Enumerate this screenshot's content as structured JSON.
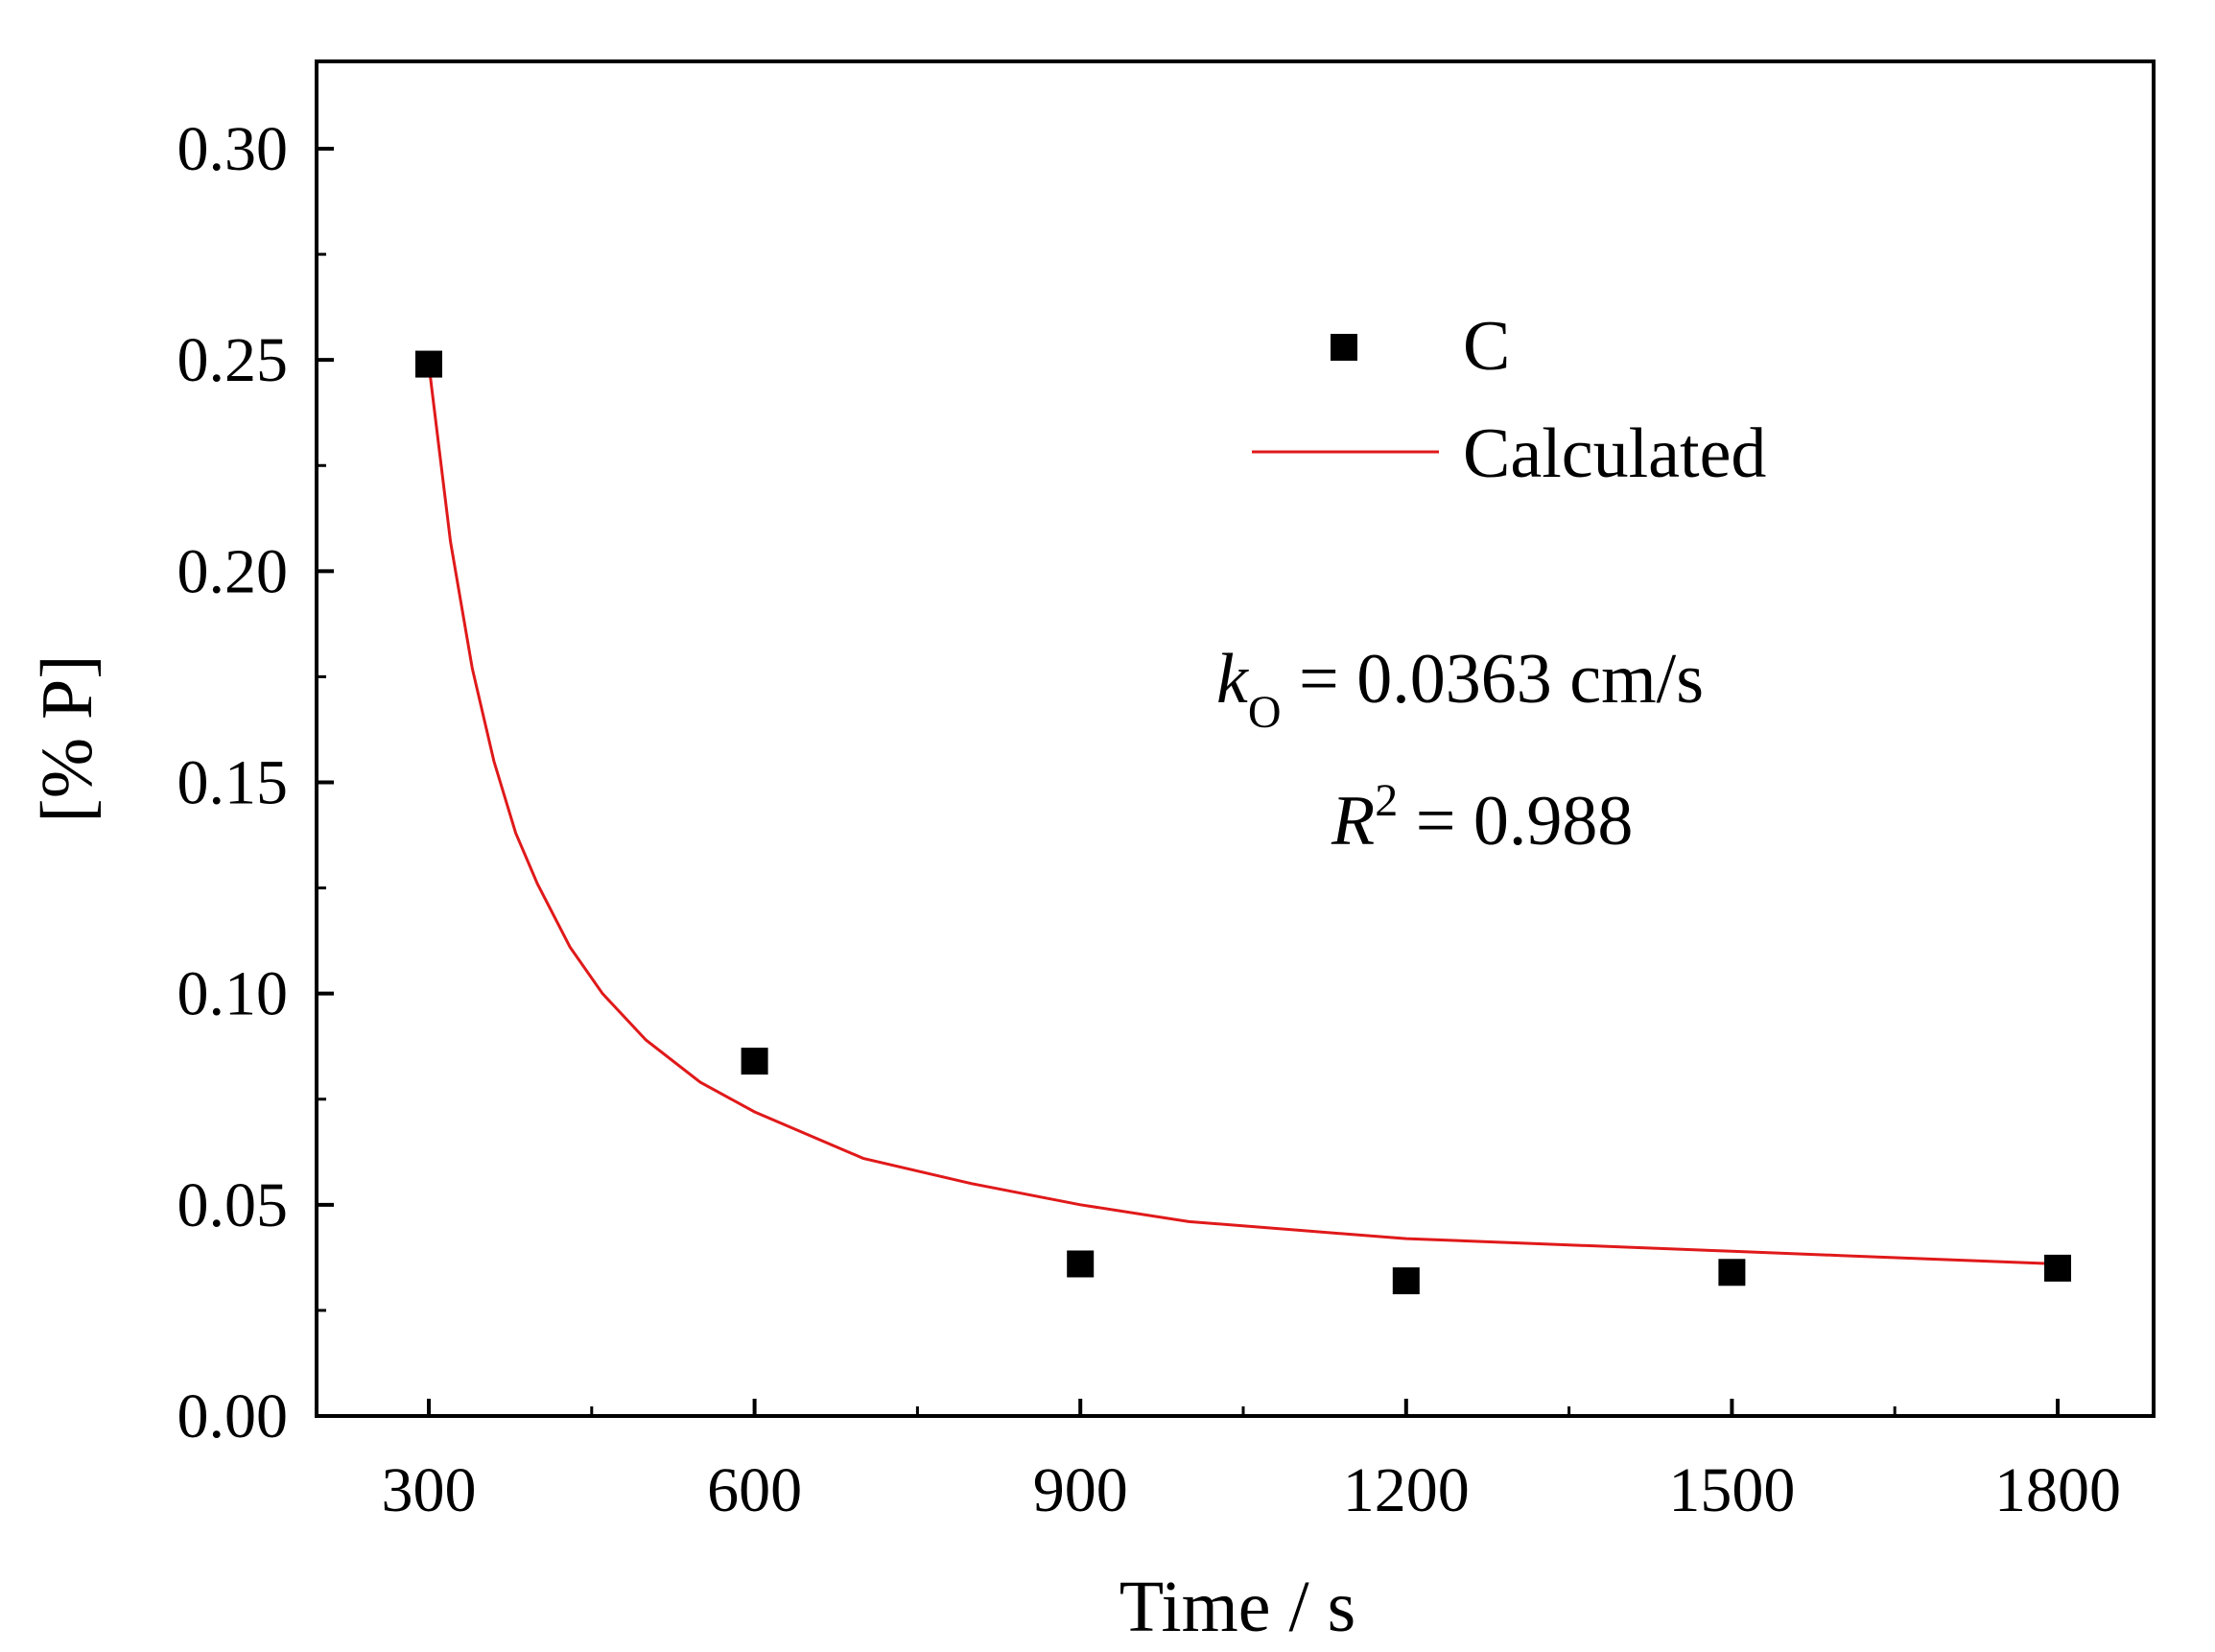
{
  "chart_data": {
    "type": "scatter",
    "title": "",
    "xlabel": "Time / s",
    "ylabel": "[% P]",
    "xlim": [
      200,
      1900
    ],
    "ylim": [
      0.0,
      0.32
    ],
    "xticks": [
      300,
      600,
      900,
      1200,
      1500,
      1800
    ],
    "xtick_labels": [
      "300",
      "600",
      "900",
      "1200",
      "1500",
      "1800"
    ],
    "yticks": [
      0.0,
      0.05,
      0.1,
      0.15,
      0.2,
      0.25,
      0.3
    ],
    "ytick_labels": [
      "0.00",
      "0.05",
      "0.10",
      "0.15",
      "0.20",
      "0.25",
      "0.30"
    ],
    "grid": false,
    "legend_position": "top-right",
    "series": [
      {
        "name": "C",
        "kind": "scatter",
        "marker": "square",
        "color": "#000000",
        "x": [
          300,
          600,
          900,
          1200,
          1500,
          1800
        ],
        "y": [
          0.249,
          0.084,
          0.036,
          0.032,
          0.034,
          0.035
        ]
      },
      {
        "name": "Calculated",
        "kind": "line",
        "color": "#e0191a",
        "x": [
          300,
          320,
          340,
          360,
          380,
          400,
          430,
          460,
          500,
          550,
          600,
          700,
          800,
          900,
          1000,
          1100,
          1200,
          1300,
          1400,
          1500,
          1600,
          1700,
          1800
        ],
        "y": [
          0.249,
          0.207,
          0.177,
          0.155,
          0.138,
          0.126,
          0.111,
          0.1,
          0.089,
          0.079,
          0.072,
          0.061,
          0.055,
          0.05,
          0.046,
          0.044,
          0.042,
          0.041,
          0.04,
          0.039,
          0.038,
          0.037,
          0.036
        ]
      }
    ],
    "annotations": {
      "k_symbol": "k",
      "k_subscript": "O",
      "k_value": " = 0.0363 cm/s",
      "r2_symbol": "R",
      "r2_superscript": "2",
      "r2_value": " = 0.988"
    }
  }
}
